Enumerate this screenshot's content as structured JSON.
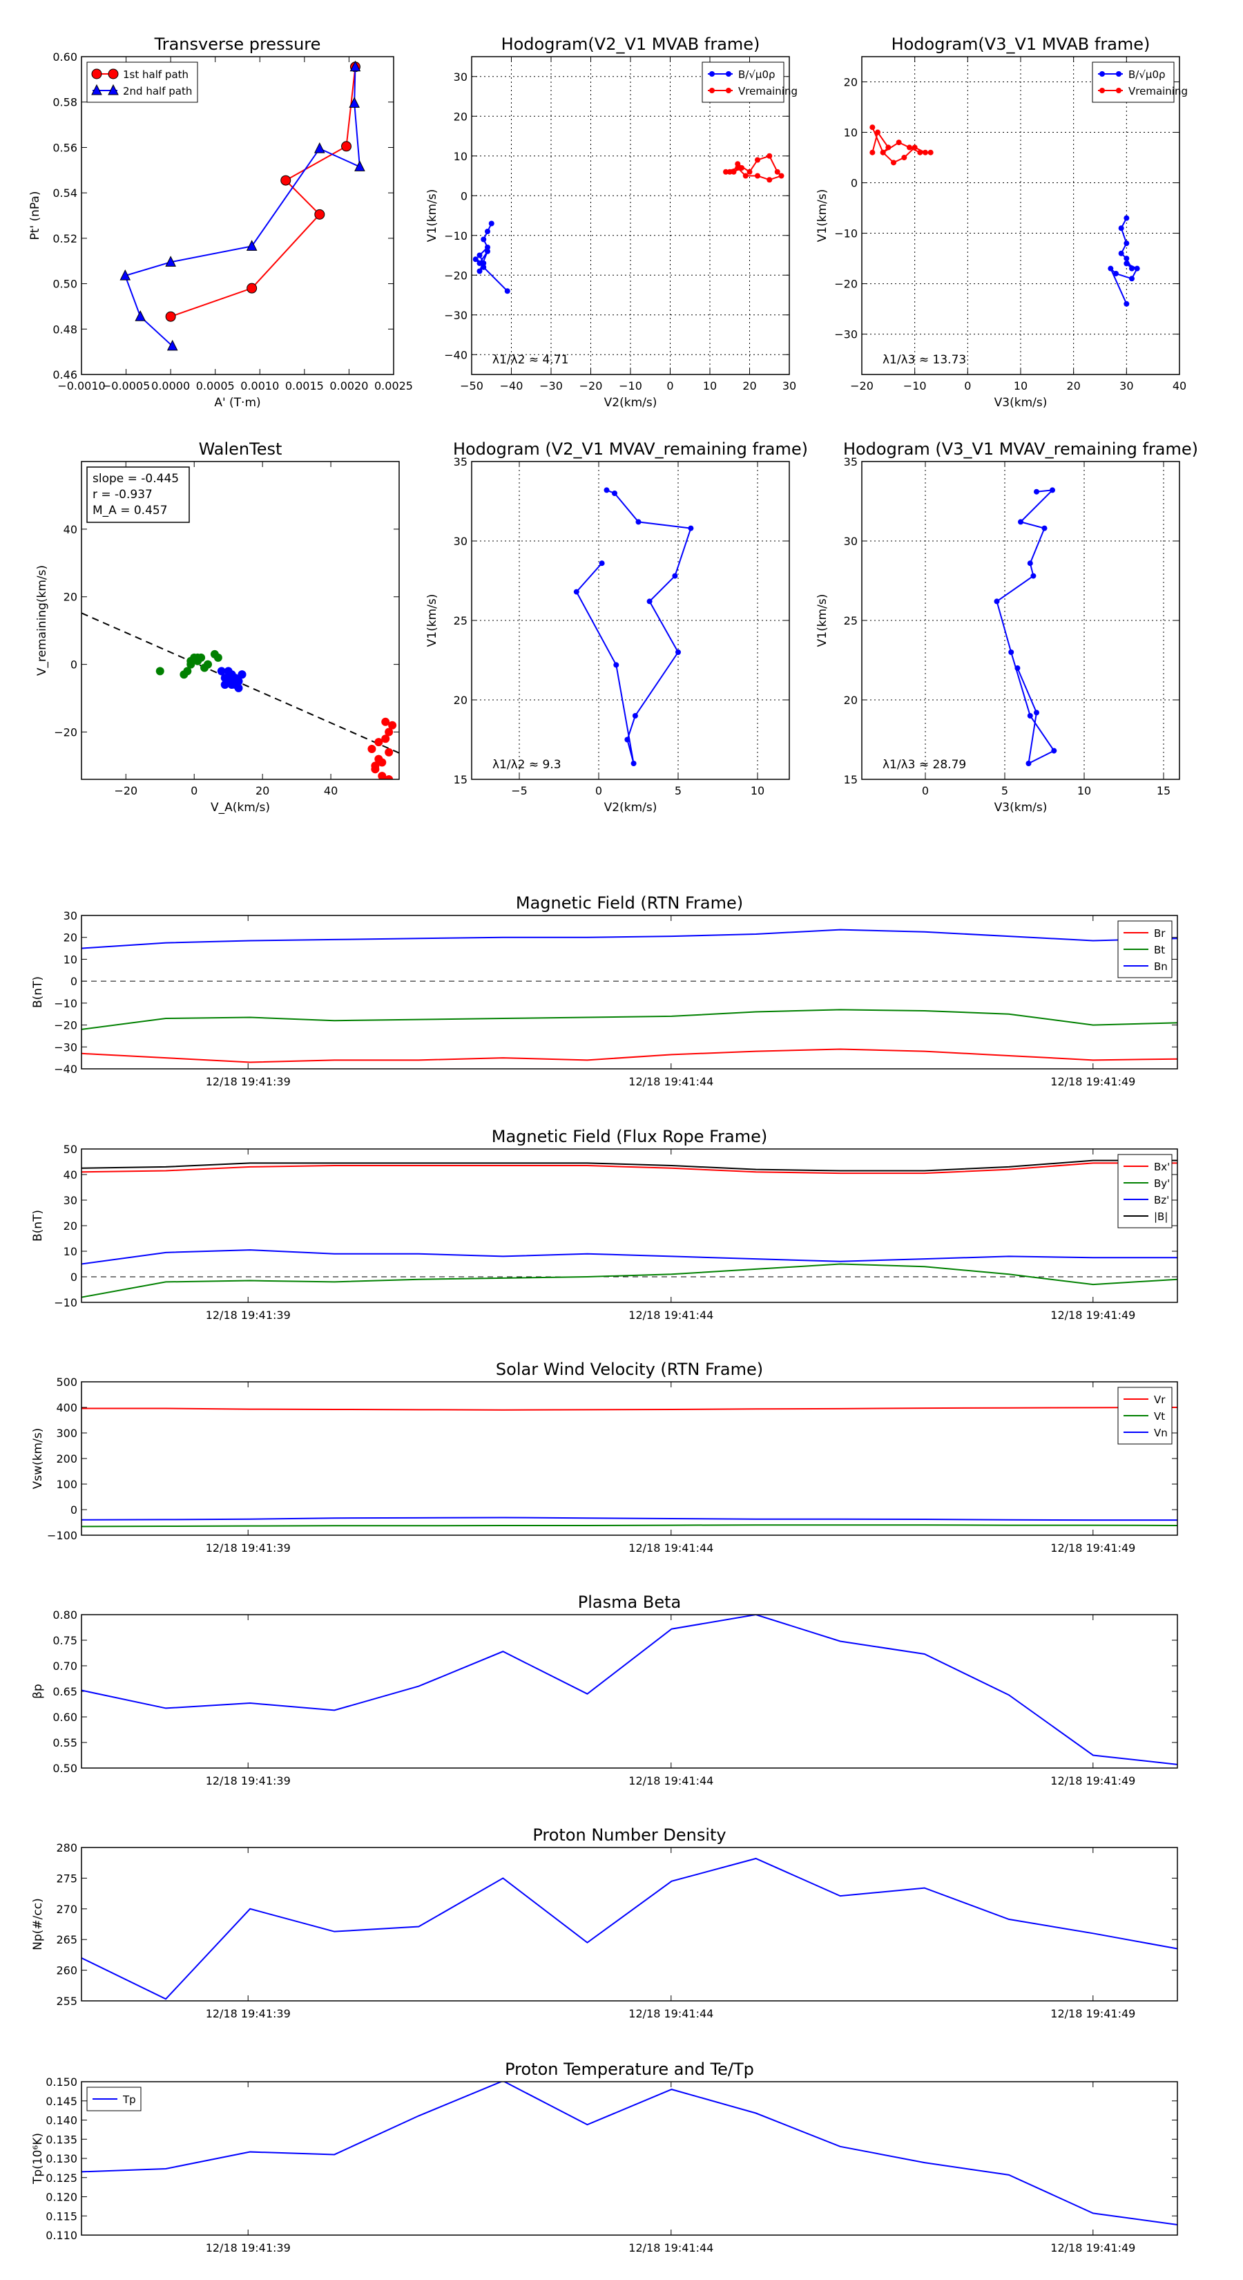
{
  "figure": {
    "time_ticks": [
      "12/18 19:41:39",
      "12/18 19:41:44",
      "12/18 19:41:49"
    ]
  },
  "chart_data": [
    {
      "id": "tp",
      "type": "line",
      "title": "Transverse pressure",
      "xlabel": "A' (T·m)",
      "ylabel": "Pt' (nPa)",
      "xlim": [
        -0.001,
        0.0025
      ],
      "ylim": [
        0.46,
        0.6
      ],
      "xticks": [
        -0.001,
        -0.0005,
        0.0,
        0.0005,
        0.001,
        0.0015,
        0.002,
        0.0025
      ],
      "xtick_labels": [
        "−0.0010",
        "−0.0005",
        "0.0000",
        "0.0005",
        "0.0010",
        "0.0015",
        "0.0020",
        "0.0025"
      ],
      "yticks": [
        0.46,
        0.48,
        0.5,
        0.52,
        0.54,
        0.56,
        0.58,
        0.6
      ],
      "ytick_labels": [
        "0.46",
        "0.48",
        "0.50",
        "0.52",
        "0.54",
        "0.56",
        "0.58",
        "0.60"
      ],
      "legend": "upper-left",
      "grid": false,
      "series": [
        {
          "name": "1st half path",
          "color": "#ff0000",
          "marker": "circle",
          "x": [
            0.0,
            0.00091,
            0.00167,
            0.00129,
            0.00197,
            0.00207
          ],
          "y": [
            0.4855,
            0.498,
            0.5305,
            0.5455,
            0.5605,
            0.5955
          ]
        },
        {
          "name": "2nd half path",
          "color": "#0000ff",
          "marker": "triangle",
          "x": [
            0.00207,
            0.00206,
            0.00212,
            0.00167,
            0.00091,
            0.0,
            -0.00051,
            -0.00034,
            2e-05
          ],
          "y": [
            0.5955,
            0.5795,
            0.5515,
            0.5595,
            0.5165,
            0.5095,
            0.5035,
            0.4855,
            0.4725
          ]
        }
      ]
    },
    {
      "id": "h1",
      "type": "line",
      "title": "Hodogram(V2_V1 MVAB frame)",
      "xlabel": "V2(km/s)",
      "ylabel": "V1(km/s)",
      "xlim": [
        -50,
        30
      ],
      "ylim": [
        -45,
        35
      ],
      "xticks": [
        -50,
        -40,
        -30,
        -20,
        -10,
        0,
        10,
        20,
        30
      ],
      "xtick_labels": [
        "−50",
        "−40",
        "−30",
        "−20",
        "−10",
        "0",
        "10",
        "20",
        "30"
      ],
      "yticks": [
        -40,
        -30,
        -20,
        -10,
        0,
        10,
        20,
        30
      ],
      "ytick_labels": [
        "−40",
        "−30",
        "−20",
        "−10",
        "0",
        "10",
        "20",
        "30"
      ],
      "legend": "upper-right",
      "grid": true,
      "annotation": "λ1/λ2 ≈ 4.71",
      "series": [
        {
          "name": "B/√μ0ρ",
          "color": "#0000ff",
          "marker": "dot",
          "x": [
            -45,
            -46,
            -47,
            -46,
            -48,
            -47,
            -49,
            -47,
            -48,
            -46,
            -48,
            -41
          ],
          "y": [
            -7,
            -9,
            -11,
            -13,
            -15,
            -17,
            -16,
            -18,
            -19,
            -14,
            -17,
            -24
          ]
        },
        {
          "name": "Vremaining",
          "color": "#ff0000",
          "marker": "dot",
          "x": [
            15,
            16,
            18,
            17,
            20,
            22,
            25,
            27,
            28,
            25,
            22,
            19,
            17,
            14
          ],
          "y": [
            6,
            6,
            7,
            8,
            6,
            9,
            10,
            6,
            5,
            4,
            5,
            5,
            7,
            6
          ]
        }
      ]
    },
    {
      "id": "h2",
      "type": "line",
      "title": "Hodogram(V3_V1 MVAB frame)",
      "xlabel": "V3(km/s)",
      "ylabel": "V1(km/s)",
      "xlim": [
        -20,
        40
      ],
      "ylim": [
        -38,
        25
      ],
      "xticks": [
        -20,
        -10,
        0,
        10,
        20,
        30,
        40
      ],
      "xtick_labels": [
        "−20",
        "−10",
        "0",
        "10",
        "20",
        "30",
        "40"
      ],
      "yticks": [
        -30,
        -20,
        -10,
        0,
        10,
        20
      ],
      "ytick_labels": [
        "−30",
        "−20",
        "−10",
        "0",
        "10",
        "20"
      ],
      "legend": "upper-right",
      "grid": true,
      "annotation": "λ1/λ3 ≈ 13.73",
      "series": [
        {
          "name": "B/√μ0ρ",
          "color": "#0000ff",
          "marker": "dot",
          "x": [
            30,
            29,
            30,
            29,
            30,
            31,
            30,
            32,
            31,
            28,
            27,
            30
          ],
          "y": [
            -7,
            -9,
            -12,
            -14,
            -15,
            -17,
            -16,
            -17,
            -19,
            -18,
            -17,
            -24
          ]
        },
        {
          "name": "Vremaining",
          "color": "#ff0000",
          "marker": "dot",
          "x": [
            -18,
            -17,
            -15,
            -16,
            -13,
            -11,
            -9,
            -7,
            -8,
            -10,
            -12,
            -14,
            -16,
            -18
          ],
          "y": [
            6,
            10,
            7,
            6,
            8,
            7,
            6,
            6,
            6,
            7,
            5,
            4,
            6,
            11
          ]
        }
      ]
    },
    {
      "id": "walen",
      "type": "scatter",
      "title": "WalenTest",
      "xlabel": "V_A(km/s)",
      "ylabel": "V_remaining(km/s)",
      "xlim": [
        -33,
        60
      ],
      "ylim": [
        -34,
        60
      ],
      "xticks": [
        -20,
        0,
        20,
        40
      ],
      "xtick_labels": [
        "−20",
        "0",
        "20",
        "40"
      ],
      "yticks": [
        -20,
        0,
        20,
        40
      ],
      "ytick_labels": [
        "−20",
        "0",
        "20",
        "40"
      ],
      "grid": false,
      "textbox": [
        "slope = -0.445",
        "r = -0.937",
        "M_A = 0.457"
      ],
      "fit_line": {
        "slope": -0.445,
        "intercept": 0.5
      },
      "groups": [
        {
          "name": "green",
          "color": "#008000",
          "x": [
            -10,
            -3,
            -2,
            -1,
            0,
            1,
            2,
            4,
            6,
            7,
            3,
            -1,
            1
          ],
          "y": [
            -2,
            -3,
            -2,
            1,
            2,
            1,
            2,
            0,
            3,
            2,
            -1,
            0,
            2
          ]
        },
        {
          "name": "blue",
          "color": "#0000ff",
          "x": [
            8,
            9,
            10,
            11,
            12,
            13,
            14,
            10,
            11,
            12,
            13,
            9,
            12,
            11,
            14
          ],
          "y": [
            -2,
            -4,
            -5,
            -3,
            -6,
            -5,
            -3,
            -2,
            -6,
            -4,
            -7,
            -6,
            -5,
            -4,
            -3
          ]
        },
        {
          "name": "red",
          "color": "#ff0000",
          "x": [
            52,
            53,
            54,
            55,
            56,
            57,
            58,
            57,
            56,
            55,
            54,
            53,
            57
          ],
          "y": [
            -25,
            -30,
            -28,
            -33,
            -22,
            -26,
            -18,
            -20,
            -17,
            -29,
            -23,
            -31,
            -34
          ]
        }
      ]
    },
    {
      "id": "h3",
      "type": "line",
      "title": "Hodogram (V2_V1 MVAV_remaining frame)",
      "xlabel": "V2(km/s)",
      "ylabel": "V1(km/s)",
      "xlim": [
        -8,
        12
      ],
      "ylim": [
        15,
        35
      ],
      "xticks": [
        -5,
        0,
        5,
        10
      ],
      "xtick_labels": [
        "−5",
        "0",
        "5",
        "10"
      ],
      "yticks": [
        15,
        20,
        25,
        30,
        35
      ],
      "ytick_labels": [
        "15",
        "20",
        "25",
        "30",
        "35"
      ],
      "grid": true,
      "annotation": "λ1/λ2 ≈ 9.3",
      "series": [
        {
          "name": "hodogram",
          "color": "#0000ff",
          "marker": "dot",
          "x": [
            0.5,
            1.0,
            2.5,
            5.8,
            4.8,
            3.2,
            5.0,
            2.3,
            1.8,
            2.2,
            1.1,
            -1.4,
            0.2
          ],
          "y": [
            33.2,
            33.0,
            31.2,
            30.8,
            27.8,
            26.2,
            23.0,
            19.0,
            17.5,
            16.0,
            22.2,
            26.8,
            28.6
          ]
        }
      ]
    },
    {
      "id": "h4",
      "type": "line",
      "title": "Hodogram (V3_V1 MVAV_remaining frame)",
      "xlabel": "V3(km/s)",
      "ylabel": "V1(km/s)",
      "xlim": [
        -4,
        16
      ],
      "ylim": [
        15,
        35
      ],
      "xticks": [
        0,
        5,
        10,
        15
      ],
      "xtick_labels": [
        "0",
        "5",
        "10",
        "15"
      ],
      "yticks": [
        15,
        20,
        25,
        30,
        35
      ],
      "ytick_labels": [
        "15",
        "20",
        "25",
        "30",
        "35"
      ],
      "grid": true,
      "annotation": "λ1/λ3 ≈ 28.79",
      "series": [
        {
          "name": "hodogram",
          "color": "#0000ff",
          "marker": "dot",
          "x": [
            7.0,
            8.0,
            6.0,
            7.5,
            6.6,
            6.8,
            4.5,
            5.4,
            6.6,
            8.1,
            6.5,
            7.0,
            5.8
          ],
          "y": [
            33.1,
            33.2,
            31.2,
            30.8,
            28.6,
            27.8,
            26.2,
            23.0,
            19.0,
            16.8,
            16.0,
            19.2,
            22.0
          ]
        }
      ]
    },
    {
      "id": "brtn",
      "type": "line",
      "title": "Magnetic Field (RTN Frame)",
      "ylabel": "B(nT)",
      "ylim": [
        -40,
        30
      ],
      "yticks": [
        -40,
        -30,
        -20,
        -10,
        0,
        10,
        20,
        30
      ],
      "ytick_labels": [
        "−40",
        "−30",
        "−20",
        "−10",
        "0",
        "10",
        "20",
        "30"
      ],
      "zero_line": true,
      "legend": "upper-right",
      "series": [
        {
          "name": "Br",
          "color": "#ff0000",
          "values": [
            -33,
            -35,
            -37,
            -36,
            -36,
            -35,
            -36,
            -33.5,
            -32,
            -31,
            -32,
            -34,
            -36,
            -35.5
          ]
        },
        {
          "name": "Bt",
          "color": "#008000",
          "values": [
            -22,
            -17,
            -16.5,
            -18,
            -17.5,
            -17,
            -16.5,
            -16,
            -14,
            -13,
            -13.5,
            -15,
            -20,
            -19
          ]
        },
        {
          "name": "Bn",
          "color": "#0000ff",
          "values": [
            15,
            17.5,
            18.5,
            19,
            19.5,
            20,
            20,
            20.5,
            21.5,
            23.5,
            22.5,
            20.5,
            18.5,
            19.5
          ]
        }
      ]
    },
    {
      "id": "bfr",
      "type": "line",
      "title": "Magnetic Field (Flux Rope Frame)",
      "ylabel": "B(nT)",
      "ylim": [
        -10,
        50
      ],
      "yticks": [
        -10,
        0,
        10,
        20,
        30,
        40,
        50
      ],
      "ytick_labels": [
        "−10",
        "0",
        "10",
        "20",
        "30",
        "40",
        "50"
      ],
      "zero_line": true,
      "legend": "upper-right",
      "series": [
        {
          "name": "Bx'",
          "color": "#ff0000",
          "values": [
            41,
            41.5,
            43,
            43.5,
            43.5,
            43.5,
            43.5,
            42.5,
            41,
            40.5,
            40.5,
            42,
            44.5,
            44.5
          ]
        },
        {
          "name": "By'",
          "color": "#008000",
          "values": [
            -8,
            -2,
            -1.5,
            -2,
            -1,
            -0.5,
            0,
            1,
            3,
            5,
            4,
            1,
            -3,
            -1
          ]
        },
        {
          "name": "Bz'",
          "color": "#0000ff",
          "values": [
            5,
            9.5,
            10.5,
            9,
            9,
            8,
            9,
            8,
            7,
            6,
            7,
            8,
            7.5,
            7.5
          ]
        },
        {
          "name": "|B|",
          "color": "#000000",
          "values": [
            42.5,
            43,
            44.5,
            44.5,
            44.5,
            44.5,
            44.5,
            43.5,
            42,
            41.5,
            41.5,
            43,
            45.5,
            45.5
          ]
        }
      ]
    },
    {
      "id": "vsw",
      "type": "line",
      "title": "Solar Wind Velocity (RTN Frame)",
      "ylabel": "Vsw(km/s)",
      "ylim": [
        -100,
        500
      ],
      "yticks": [
        -100,
        0,
        100,
        200,
        300,
        400,
        500
      ],
      "ytick_labels": [
        "−100",
        "0",
        "100",
        "200",
        "300",
        "400",
        "500"
      ],
      "zero_line": false,
      "legend": "upper-right",
      "series": [
        {
          "name": "Vr",
          "color": "#ff0000",
          "values": [
            396,
            396,
            393,
            392,
            391,
            390,
            391,
            392,
            394,
            395,
            397,
            398,
            399,
            400
          ]
        },
        {
          "name": "Vt",
          "color": "#008000",
          "values": [
            -66,
            -65,
            -64,
            -63,
            -63,
            -62,
            -62,
            -61,
            -60,
            -60,
            -60,
            -61,
            -61,
            -62
          ]
        },
        {
          "name": "Vn",
          "color": "#0000ff",
          "values": [
            -40,
            -39,
            -37,
            -33,
            -32,
            -31,
            -33,
            -35,
            -37,
            -37,
            -38,
            -40,
            -41,
            -41
          ]
        }
      ]
    },
    {
      "id": "beta",
      "type": "line",
      "title": "Plasma Beta",
      "ylabel": "βp",
      "ylim": [
        0.5,
        0.8
      ],
      "yticks": [
        0.5,
        0.55,
        0.6,
        0.65,
        0.7,
        0.75,
        0.8
      ],
      "ytick_labels": [
        "0.50",
        "0.55",
        "0.60",
        "0.65",
        "0.70",
        "0.75",
        "0.80"
      ],
      "zero_line": false,
      "series": [
        {
          "name": "beta",
          "color": "#0000ff",
          "values": [
            0.652,
            0.617,
            0.627,
            0.613,
            0.66,
            0.728,
            0.645,
            0.772,
            0.8,
            0.748,
            0.723,
            0.643,
            0.525,
            0.507
          ]
        }
      ]
    },
    {
      "id": "np",
      "type": "line",
      "title": "Proton Number Density",
      "ylabel": "Np(#/cc)",
      "ylim": [
        255,
        280
      ],
      "yticks": [
        255,
        260,
        265,
        270,
        275,
        280
      ],
      "ytick_labels": [
        "255",
        "260",
        "265",
        "270",
        "275",
        "280"
      ],
      "zero_line": false,
      "series": [
        {
          "name": "Np",
          "color": "#0000ff",
          "values": [
            262,
            255.3,
            270,
            266.3,
            267.1,
            275,
            264.5,
            274.5,
            278.2,
            272.1,
            273.4,
            268.3,
            266,
            263.5
          ]
        }
      ]
    },
    {
      "id": "tp2",
      "type": "line",
      "title": "Proton Temperature and Te/Tp",
      "ylabel": "Tp(10⁶K)",
      "ylim": [
        0.11,
        0.15
      ],
      "yticks": [
        0.11,
        0.115,
        0.12,
        0.125,
        0.13,
        0.135,
        0.14,
        0.145,
        0.15
      ],
      "ytick_labels": [
        "0.110",
        "0.115",
        "0.120",
        "0.125",
        "0.130",
        "0.135",
        "0.140",
        "0.145",
        "0.150"
      ],
      "zero_line": false,
      "legend": "upper-left",
      "series": [
        {
          "name": "Tp",
          "color": "#0000ff",
          "values": [
            0.1265,
            0.1273,
            0.1317,
            0.131,
            0.1411,
            0.1502,
            0.1388,
            0.148,
            0.1418,
            0.1331,
            0.1289,
            0.1257,
            0.1157,
            0.1127
          ]
        }
      ]
    }
  ]
}
